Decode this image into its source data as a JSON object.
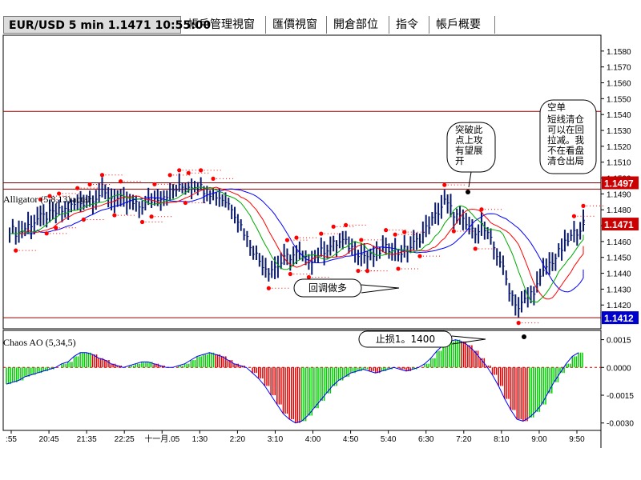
{
  "tabs": [
    {
      "label": "EUR/USD 5 min 1.1471 10:55:00",
      "active": true
    },
    {
      "label": "帳戶管理視窗",
      "active": false
    },
    {
      "label": "匯價視窗",
      "active": false
    },
    {
      "label": "開倉部位",
      "active": false
    },
    {
      "label": "指令",
      "active": false
    },
    {
      "label": "帳戶概要",
      "active": false
    }
  ],
  "colors": {
    "price_bars": "#0a1a6e",
    "fractal": "#ff0000",
    "jaw": "#0000ff",
    "teeth": "#ff0000",
    "lips": "#00aa00",
    "ao_up": "#00cc00",
    "ao_down": "#dd0000",
    "resistance": "#8b0000"
  },
  "chart_data": [
    {
      "type": "candlestick",
      "title": "Alligator (5,8,13)",
      "legend_extra": "ractal",
      "ylim": [
        1.1405,
        1.159
      ],
      "y_ticks": [
        "1.1580",
        "1.1570",
        "1.1560",
        "1.1550",
        "1.1540",
        "1.1530",
        "1.1520",
        "1.1510",
        "1.1500",
        "1.1490",
        "1.1480",
        "1.1470",
        "1.1460",
        "1.1450",
        "1.1440",
        "1.1430",
        "1.1420"
      ],
      "x_ticks": [
        ":55",
        "20:45",
        "21:35",
        "22:25",
        "十一月.05",
        "1:30",
        "2:20",
        "3:10",
        "4:00",
        "4:50",
        "5:40",
        "6:30",
        "7:20",
        "8:10",
        "9:00",
        "9:50"
      ],
      "price_tags": [
        {
          "value": 1.1497,
          "label": "1.1497",
          "color": "#cc0000"
        },
        {
          "value": 1.1471,
          "label": "1.1471",
          "color": "#cc0000"
        },
        {
          "value": 1.1412,
          "label": "1.1412",
          "color": "#0000cc"
        }
      ],
      "horizontal_lines": [
        1.1542,
        1.1497,
        1.1493,
        1.1412
      ],
      "close_path": [
        1.1468,
        1.1465,
        1.147,
        1.1474,
        1.1476,
        1.1478,
        1.148,
        1.1483,
        1.1485,
        1.1488,
        1.149,
        1.1488,
        1.1486,
        1.1484,
        1.1482,
        1.1485,
        1.1488,
        1.149,
        1.1493,
        1.1495,
        1.1496,
        1.1493,
        1.149,
        1.1487,
        1.1482,
        1.147,
        1.1458,
        1.1448,
        1.1442,
        1.1445,
        1.145,
        1.1452,
        1.1448,
        1.145,
        1.1455,
        1.1458,
        1.146,
        1.1456,
        1.1452,
        1.145,
        1.1454,
        1.1456,
        1.1453,
        1.1455,
        1.146,
        1.1468,
        1.1476,
        1.1485,
        1.1478,
        1.1472,
        1.1466,
        1.147,
        1.146,
        1.1448,
        1.143,
        1.1418,
        1.1425,
        1.1432,
        1.1444,
        1.145,
        1.1458,
        1.1465,
        1.1471
      ]
    },
    {
      "type": "bar",
      "title": "Chaos AO (5,34,5)",
      "ylim": [
        -0.0034,
        0.002
      ],
      "y_ticks": [
        "0.0015",
        "0.0000",
        "-0.0015",
        "-0.0030"
      ],
      "values": [
        -0.0009,
        -0.0008,
        -0.0007,
        -0.0005,
        -0.0004,
        -0.0003,
        -0.0002,
        -0.0001,
        0.0,
        0.0002,
        0.0003,
        0.0006,
        0.0008,
        0.0008,
        0.0007,
        0.0005,
        0.0004,
        0.0002,
        0.0001,
        0.0,
        0.0001,
        0.0002,
        0.0003,
        0.0003,
        0.0002,
        0.0001,
        0.0,
        0.0,
        0.0001,
        0.0002,
        0.0004,
        0.0006,
        0.0007,
        0.0008,
        0.0007,
        0.0006,
        0.0004,
        0.0002,
        0.0001,
        0.0,
        -0.0003,
        -0.0006,
        -0.001,
        -0.0015,
        -0.002,
        -0.0025,
        -0.0028,
        -0.003,
        -0.0029,
        -0.0026,
        -0.0022,
        -0.0018,
        -0.0014,
        -0.001,
        -0.0007,
        -0.0005,
        -0.0003,
        -0.0002,
        -0.0001,
        -0.0002,
        -0.0003,
        -0.0002,
        -0.0001,
        0.0,
        -0.0001,
        -0.0002,
        -0.0001,
        0.0,
        0.0002,
        0.0005,
        0.0009,
        0.0012,
        0.0014,
        0.0015,
        0.0014,
        0.0012,
        0.0009,
        0.0005,
        0.0001,
        -0.0004,
        -0.001,
        -0.0017,
        -0.0023,
        -0.0028,
        -0.0029,
        -0.0027,
        -0.0024,
        -0.002,
        -0.0014,
        -0.0008,
        -0.0003,
        0.0002,
        0.0006,
        0.0008
      ]
    }
  ],
  "annotations": {
    "breakout": "突破此点上攻有望展开",
    "pullback": "回调做多",
    "stoploss": "止损1。1400",
    "short": "空单",
    "short_note": "短线清仓可以在回拉减。我不在看盘清仓出局"
  }
}
